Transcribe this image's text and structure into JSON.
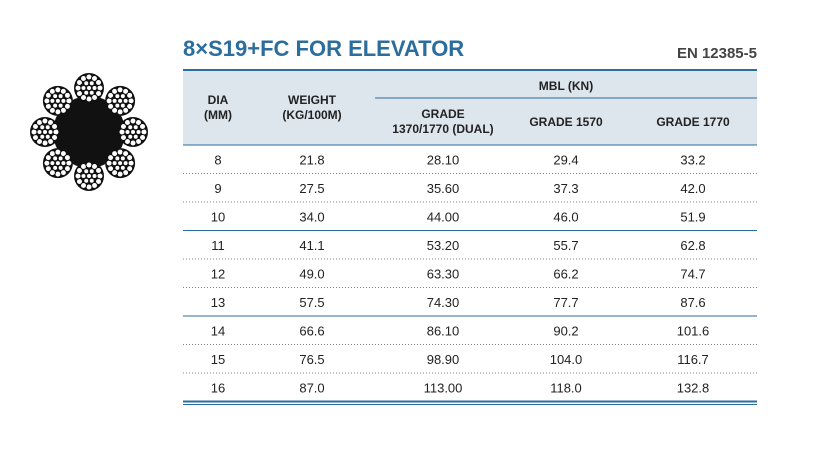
{
  "header": {
    "title": "8×S19+FC FOR ELEVATOR",
    "standard": "EN 12385-5"
  },
  "table": {
    "columns": {
      "dia": "DIA\n(MM)",
      "weight": "WEIGHT\n(KG/100M)",
      "mbl": "MBL (KN)",
      "grades": [
        "GRADE\n1370/1770 (DUAL)",
        "GRADE 1570",
        "GRADE 1770"
      ]
    },
    "rows": [
      [
        "8",
        "21.8",
        "28.10",
        "29.4",
        "33.2"
      ],
      [
        "9",
        "27.5",
        "35.60",
        "37.3",
        "42.0"
      ],
      [
        "10",
        "34.0",
        "44.00",
        "46.0",
        "51.9"
      ],
      [
        "11",
        "41.1",
        "53.20",
        "55.7",
        "62.8"
      ],
      [
        "12",
        "49.0",
        "63.30",
        "66.2",
        "74.7"
      ],
      [
        "13",
        "57.5",
        "74.30",
        "77.7",
        "87.6"
      ],
      [
        "14",
        "66.6",
        "86.10",
        "90.2",
        "101.6"
      ],
      [
        "15",
        "76.5",
        "98.90",
        "104.0",
        "116.7"
      ],
      [
        "16",
        "87.0",
        "113.00",
        "118.0",
        "132.8"
      ]
    ]
  }
}
